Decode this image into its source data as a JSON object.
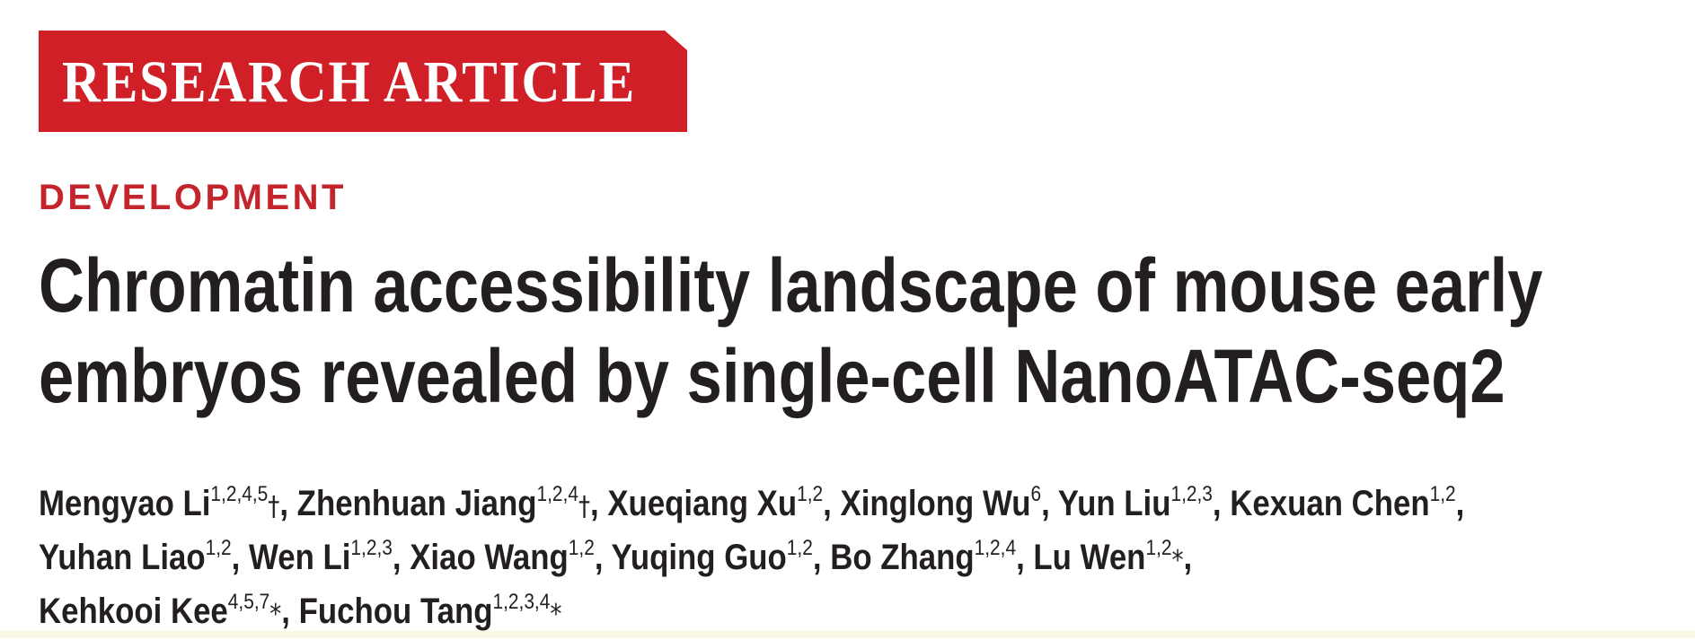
{
  "banner": {
    "label": "RESEARCH ARTICLE",
    "color": "#d01f26"
  },
  "section": {
    "label": "DEVELOPMENT",
    "color": "#c4242b"
  },
  "title": {
    "lines": [
      "Chromatin accessibility landscape of mouse early",
      "embryos revealed by single-cell NanoATAC-seq2"
    ]
  },
  "authors": [
    {
      "name": "Mengyao Li",
      "aff": "1,2,4,5",
      "mark": "†",
      "sep": ", "
    },
    {
      "name": "Zhenhuan Jiang",
      "aff": "1,2,4",
      "mark": "†",
      "sep": ", "
    },
    {
      "name": "Xueqiang Xu",
      "aff": "1,2",
      "mark": "",
      "sep": ", "
    },
    {
      "name": "Xinglong Wu",
      "aff": "6",
      "mark": "",
      "sep": ", "
    },
    {
      "name": "Yun Liu",
      "aff": "1,2,3",
      "mark": "",
      "sep": ", "
    },
    {
      "name": "Kexuan Chen",
      "aff": "1,2",
      "mark": "",
      "sep": ","
    },
    {
      "name": "Yuhan Liao",
      "aff": "1,2",
      "mark": "",
      "sep": ", "
    },
    {
      "name": "Wen Li",
      "aff": "1,2,3",
      "mark": "",
      "sep": ", "
    },
    {
      "name": "Xiao Wang",
      "aff": "1,2",
      "mark": "",
      "sep": ", "
    },
    {
      "name": "Yuqing Guo",
      "aff": "1,2",
      "mark": "",
      "sep": ", "
    },
    {
      "name": "Bo Zhang",
      "aff": "1,2,4",
      "mark": "",
      "sep": ", "
    },
    {
      "name": "Lu Wen",
      "aff": "1,2",
      "mark": "*",
      "sep": ","
    },
    {
      "name": "Kehkooi Kee",
      "aff": "4,5,7",
      "mark": "*",
      "sep": ", "
    },
    {
      "name": "Fuchou Tang",
      "aff": "1,2,3,4",
      "mark": "*",
      "sep": ""
    }
  ]
}
